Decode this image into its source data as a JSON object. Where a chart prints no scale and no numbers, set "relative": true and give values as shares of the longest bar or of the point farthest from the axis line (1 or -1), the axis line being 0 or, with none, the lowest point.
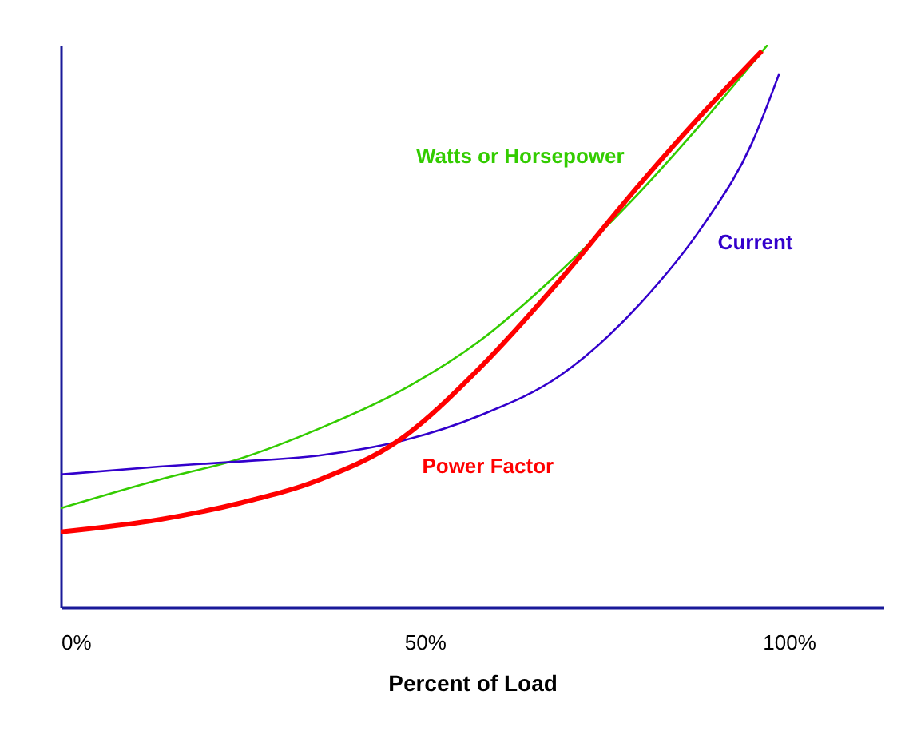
{
  "chart_data": {
    "type": "line",
    "relative": true,
    "xlabel": "Percent of Load",
    "xlim": [
      0,
      113
    ],
    "xticks": [
      {
        "value": 0,
        "label": "0%"
      },
      {
        "value": 50,
        "label": "50%"
      },
      {
        "value": 100,
        "label": "100%"
      }
    ],
    "grid": false,
    "marker": "none",
    "line_style": "solid",
    "series": [
      {
        "name": "Watts or Horsepower",
        "color": "#33cc00",
        "x": [
          0,
          13.6,
          24.6,
          35.6,
          46.6,
          57.6,
          68.6,
          79.6,
          88.4,
          97.1
        ],
        "values": [
          0.176,
          0.227,
          0.264,
          0.318,
          0.384,
          0.474,
          0.597,
          0.739,
          0.866,
          1
        ]
      },
      {
        "name": "Current",
        "color": "#3300cc",
        "x": [
          0,
          13.6,
          24.6,
          35.6,
          46.6,
          57.6,
          68.6,
          79.6,
          88.4,
          94.9,
          98.7
        ],
        "values": [
          0.236,
          0.25,
          0.259,
          0.27,
          0.295,
          0.341,
          0.412,
          0.54,
          0.682,
          0.824,
          0.949
        ]
      },
      {
        "name": "Power Factor",
        "color": "#ff0000",
        "x": [
          0,
          13.6,
          24.6,
          35.6,
          46.6,
          57.6,
          68.6,
          79.6,
          88.4,
          96.3
        ],
        "values": [
          0.134,
          0.156,
          0.185,
          0.227,
          0.298,
          0.426,
          0.582,
          0.753,
          0.881,
          0.989
        ]
      }
    ]
  }
}
